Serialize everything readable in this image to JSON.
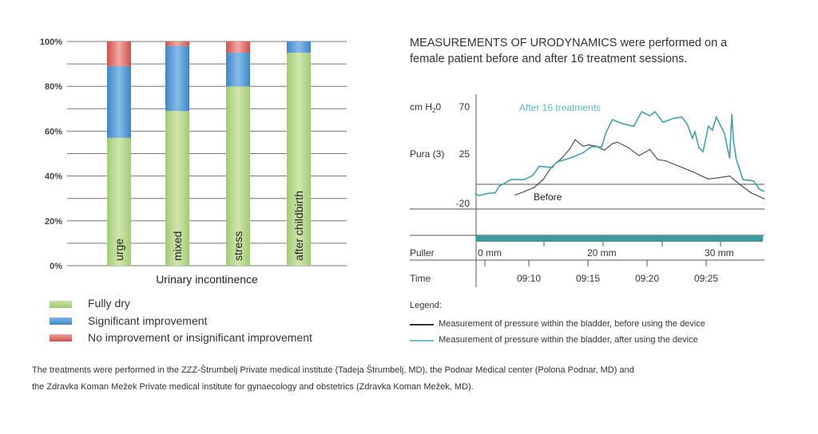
{
  "chart_data": [
    {
      "type": "bar",
      "stacked": true,
      "xlabel": "Urinary incontinence",
      "categories": [
        "urge",
        "mixed",
        "stress",
        "after childbirth"
      ],
      "yticks": [
        "0%",
        "20%",
        "40%",
        "60%",
        "80%",
        "100%"
      ],
      "ylim": [
        0,
        100
      ],
      "grid": true,
      "series": [
        {
          "name": "Fully dry",
          "color": "#a8cf7e",
          "values": [
            57,
            69,
            80,
            95
          ]
        },
        {
          "name": "Significant improvement",
          "color": "#4a90d0",
          "values": [
            32,
            29,
            15,
            5
          ]
        },
        {
          "name": "No improvement or insignificant improvement",
          "color": "#d9605a",
          "values": [
            11,
            2,
            5,
            0
          ]
        }
      ],
      "legend_placement": "bottom"
    },
    {
      "type": "line",
      "title_bold": "MEASUREMENTS OF URODYNAMICS",
      "title_rest": " were performed on a",
      "title_line2": "female patient before and after 16 treatment sessions.",
      "ylabel_unit": "cm H",
      "ylabel_sub": "2",
      "ylabel_unit_end": "0",
      "ylabel_channel": "Pura (3)",
      "yticks": [
        "70",
        "25",
        "-20"
      ],
      "ylim": [
        -20,
        70
      ],
      "puller_label": "Puller",
      "puller_ticks": [
        "0 mm",
        "20 mm",
        "30 mm"
      ],
      "time_label": "Time",
      "xticks": [
        "09:10",
        "09:15",
        "09:20",
        "09:25"
      ],
      "annotation_after": "After 16 treatments",
      "annotation_before": "Before",
      "legend_title": "Legend:",
      "series": [
        {
          "name": "Measurement of pressure within the bladder, before using the device",
          "color": "#444444",
          "points": [
            [
              "09:08:51",
              -11.3
            ],
            [
              "09:09:38",
              -8.1
            ],
            [
              "09:10:26",
              -4.5
            ],
            [
              "09:11:13",
              2.8
            ],
            [
              "09:11:53",
              13.8
            ],
            [
              "09:12:47",
              22.3
            ],
            [
              "09:13:28",
              30.8
            ],
            [
              "09:13:55",
              39.3
            ],
            [
              "09:14:35",
              33.3
            ],
            [
              "09:15:03",
              34.5
            ],
            [
              "09:15:43",
              33.3
            ],
            [
              "09:16:24",
              29.6
            ],
            [
              "09:17:04",
              35.7
            ],
            [
              "09:17:31",
              36.9
            ],
            [
              "09:18:25",
              32
            ],
            [
              "09:19:19",
              24.7
            ],
            [
              "09:20:14",
              30.3
            ],
            [
              "09:20:54",
              21.1
            ],
            [
              "09:21:35",
              19.9
            ],
            [
              "09:22:42",
              15
            ],
            [
              "09:23:50",
              10.1
            ],
            [
              "09:25:11",
              3.3
            ],
            [
              "09:26:05",
              4.5
            ],
            [
              "09:26:59",
              6
            ],
            [
              "09:27:53",
              -2
            ],
            [
              "09:28:47",
              -9.3
            ],
            [
              "09:29:55",
              -14.9
            ]
          ]
        },
        {
          "name": "Measurement of pressure within the bladder, after using the device",
          "color": "#3fa3ad",
          "points": [
            [
              "09:05:28",
              -10.5
            ],
            [
              "09:05:49",
              -11.8
            ],
            [
              "09:06:29",
              -10
            ],
            [
              "09:07:10",
              -9.3
            ],
            [
              "09:07:30",
              -3.2
            ],
            [
              "09:08:31",
              2.8
            ],
            [
              "09:09:38",
              2.8
            ],
            [
              "09:10:19",
              6.5
            ],
            [
              "09:10:53",
              15
            ],
            [
              "09:12:00",
              13.8
            ],
            [
              "09:12:20",
              18.7
            ],
            [
              "09:13:28",
              22.3
            ],
            [
              "09:14:35",
              27.2
            ],
            [
              "09:15:16",
              32.8
            ],
            [
              "09:16:10",
              32.8
            ],
            [
              "09:16:31",
              45.4
            ],
            [
              "09:17:04",
              57.6
            ],
            [
              "09:17:58",
              53.9
            ],
            [
              "09:18:52",
              51.5
            ],
            [
              "09:19:33",
              64.9
            ],
            [
              "09:20:14",
              61.2
            ],
            [
              "09:20:41",
              64.9
            ],
            [
              "09:21:21",
              55.2
            ],
            [
              "09:22:15",
              58.8
            ],
            [
              "09:22:56",
              60
            ],
            [
              "09:23:23",
              53.9
            ],
            [
              "09:23:50",
              40.6
            ],
            [
              "09:24:03",
              46.6
            ],
            [
              "09:24:23",
              32
            ],
            [
              "09:24:44",
              28.4
            ],
            [
              "09:25:11",
              51.5
            ],
            [
              "09:25:31",
              47.9
            ],
            [
              "09:25:52",
              60
            ],
            [
              "09:26:05",
              55.2
            ],
            [
              "09:26:32",
              45.4
            ],
            [
              "09:26:59",
              22.3
            ],
            [
              "09:27:10",
              62.5
            ],
            [
              "09:27:19",
              38.1
            ],
            [
              "09:27:33",
              21.1
            ],
            [
              "09:28:07",
              2.8
            ],
            [
              "09:29:01",
              1.6
            ],
            [
              "09:29:28",
              -5.7
            ],
            [
              "09:29:55",
              -8.1
            ]
          ]
        }
      ],
      "puller_bar_color": "#3a9a9e"
    }
  ],
  "footer": {
    "line1": "The treatments were performed in the ZZZ-Štrumbelj Private medical institute (Tadeja Štrumbelj, MD), the Podnar Medical center (Polona Podnar, MD) and",
    "line2": "the Zdravka Koman Mežek Private medical institute for gynaecology and obstetrics (Zdravka Koman Mežek, MD)."
  }
}
